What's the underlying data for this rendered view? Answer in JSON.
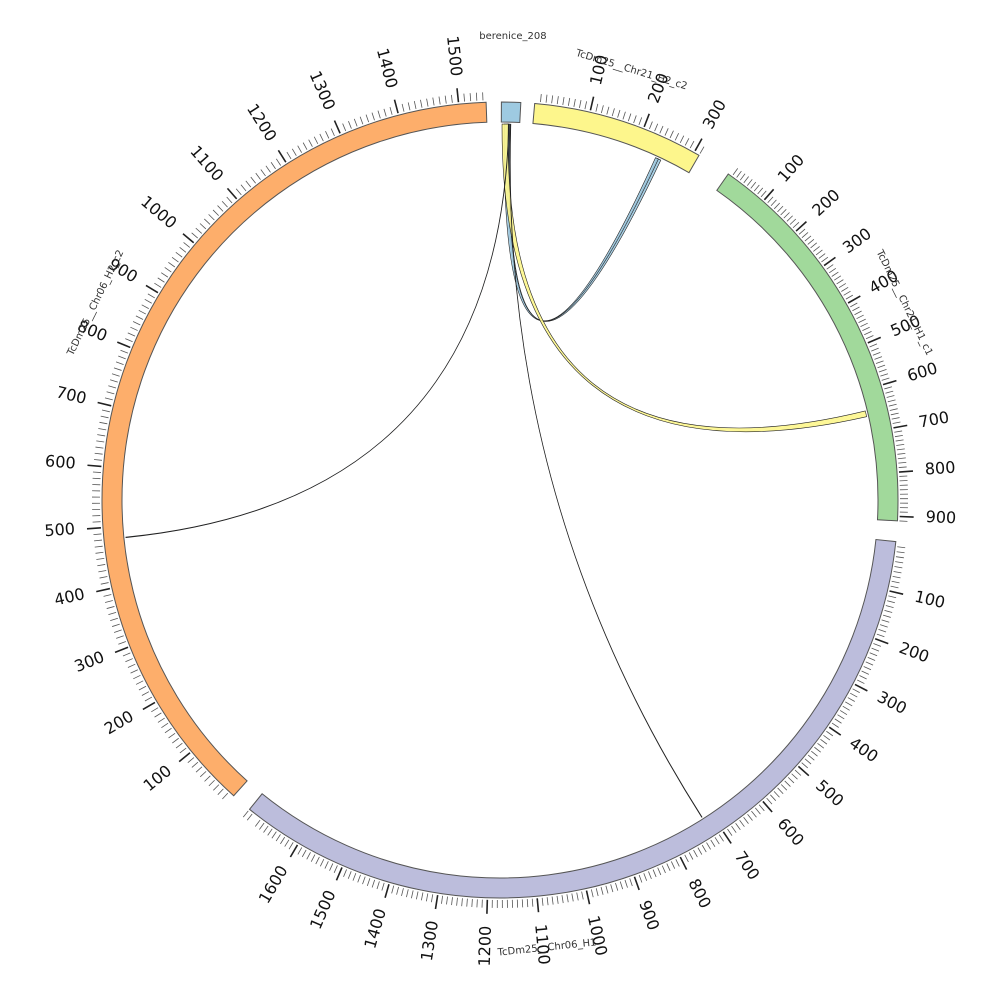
{
  "chart_data": {
    "type": "chord",
    "segments": [
      {
        "id": "berenice",
        "name": "berenice_208",
        "length": 5,
        "color": "#9ecae1",
        "ticks": []
      },
      {
        "id": "chr21h2",
        "name": "TcDm25__Chr21_H2_c2",
        "length": 310,
        "color": "#fdf68c",
        "ticks": [
          "100",
          "200",
          "300"
        ]
      },
      {
        "id": "chr21h1",
        "name": "TcDm25__Chr21_H1_c1",
        "length": 910,
        "color": "#a1d99b",
        "ticks": [
          "100",
          "200",
          "300",
          "400",
          "500",
          "600",
          "700",
          "800",
          "900"
        ]
      },
      {
        "id": "chr06h1",
        "name": "TcDm25__Chr06_H1",
        "length": 1720,
        "color": "#bcbddc",
        "ticks": [
          "100",
          "200",
          "300",
          "400",
          "500",
          "600",
          "700",
          "800",
          "900",
          "1000",
          "1100",
          "1200",
          "1300",
          "1400",
          "1500",
          "1600"
        ]
      },
      {
        "id": "chr06h2",
        "name": "TcDm25__Chr06_H2_c2",
        "length": 1545,
        "color": "#fdae6b",
        "ticks": [
          "100",
          "200",
          "300",
          "400",
          "500",
          "600",
          "700",
          "800",
          "900",
          "1000",
          "1100",
          "1200",
          "1300",
          "1400",
          "1500"
        ]
      }
    ],
    "links": [
      {
        "from": "berenice",
        "from_start": 1.6,
        "from_end": 2.4,
        "to": "chr21h2",
        "to_start": 245,
        "to_end": 252,
        "color": "#9ecae1"
      },
      {
        "from": "berenice",
        "from_start": 0.8,
        "from_end": 2.2,
        "to": "chr21h2",
        "to_start": 241,
        "to_end": 247,
        "color": "#9ecae1"
      },
      {
        "from": "berenice",
        "from_start": 0.2,
        "from_end": 1.9,
        "to": "chr21h1",
        "to_start": 648,
        "to_end": 662,
        "color": "#fdf68c"
      },
      {
        "from": "berenice",
        "from_start": 2.0,
        "from_end": 2.1,
        "to": "chr06h2",
        "to_start": 480,
        "to_end": 481,
        "color": "#6b8ab8"
      },
      {
        "from": "berenice",
        "from_start": 2.5,
        "from_end": 2.6,
        "to": "chr06h1",
        "to_start": 720,
        "to_end": 721,
        "color": "#333333"
      }
    ]
  }
}
